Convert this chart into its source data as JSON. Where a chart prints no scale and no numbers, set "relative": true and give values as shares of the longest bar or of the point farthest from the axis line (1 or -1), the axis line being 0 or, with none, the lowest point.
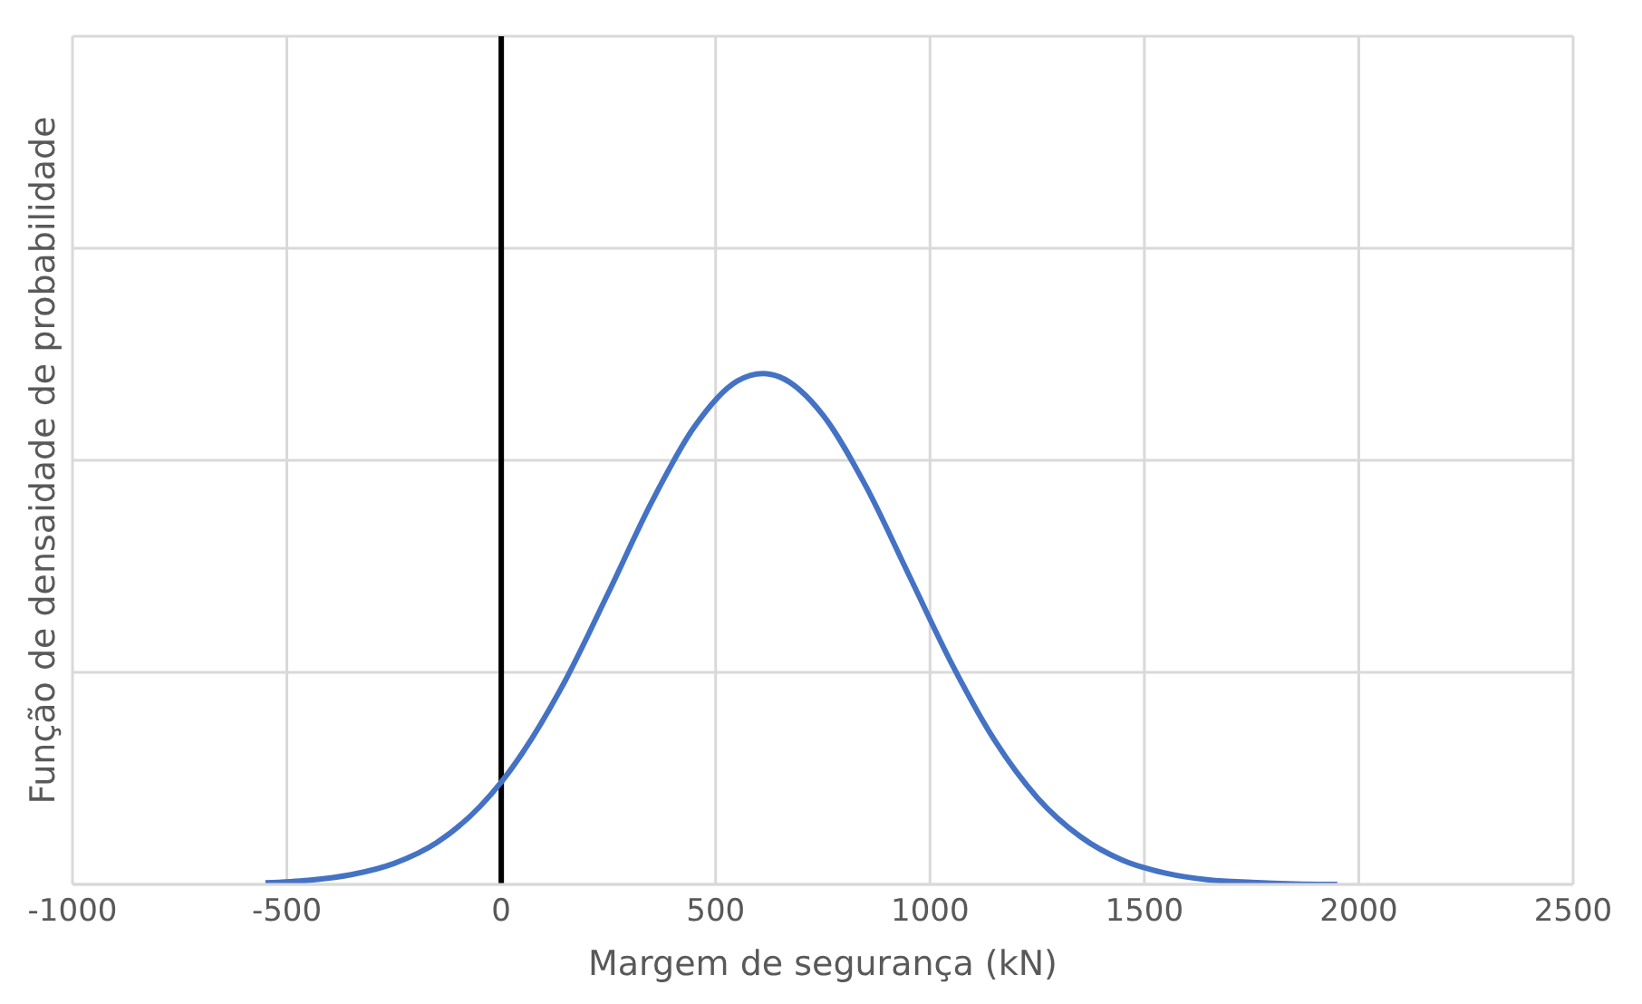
{
  "chart_data": {
    "type": "line",
    "xlabel": "Margem de segurança (kN)",
    "ylabel": "Função de densaidade de probabilidade",
    "relative": true,
    "x": [
      -550,
      -450,
      -350,
      -250,
      -150,
      -50,
      0,
      50,
      150,
      250,
      350,
      450,
      550,
      610,
      650,
      750,
      850,
      950,
      1050,
      1150,
      1250,
      1350,
      1450,
      1550,
      1650,
      1750,
      1850,
      1950
    ],
    "series": [
      {
        "color": "#4472c4",
        "values": [
          0.003,
          0.008,
          0.019,
          0.041,
          0.082,
          0.152,
          0.2,
          0.258,
          0.4,
          0.571,
          0.747,
          0.895,
          0.985,
          1,
          0.993,
          0.919,
          0.78,
          0.607,
          0.433,
          0.283,
          0.17,
          0.094,
          0.047,
          0.022,
          0.009,
          0.004,
          0.001,
          0
        ]
      }
    ],
    "xlim": [
      -1000,
      2500
    ],
    "xticks": [
      -1000,
      -500,
      0,
      500,
      1000,
      1500,
      2000,
      2500
    ],
    "ref_lines": [
      {
        "axis": "x",
        "value": 0,
        "color": "#000000"
      }
    ],
    "grid": true,
    "legend": false,
    "marker": "none",
    "line_style": "solid"
  }
}
